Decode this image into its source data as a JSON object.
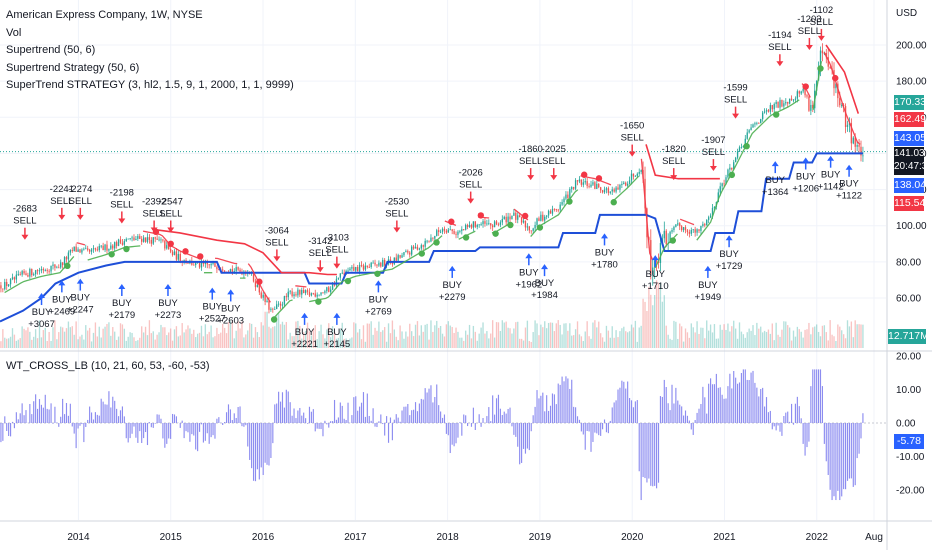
{
  "legend": {
    "title": "American Express Company, 1W, NYSE",
    "lines": [
      "Vol",
      "Supertrend (50, 6)",
      "Supertrend Strategy (50, 6)",
      "SuperTrend STRATEGY (3, hl2, 1.5, 9, 1, 2000, 1, 1, 9999)"
    ]
  },
  "oscillator_title": "WT_CROSS_LB (10, 21, 60, 53, -60, -53)",
  "colors": {
    "up": "#26a69a",
    "down": "#ef5350",
    "supertrend_blue": "#1e4fd8",
    "supertrend_red": "#f23645",
    "supertrend_green": "#4caf50",
    "wt_bar": "#8c8cf0",
    "badge_green": "#26a69a",
    "badge_red": "#f23645",
    "badge_blue": "#2962ff",
    "badge_dark": "#131722"
  },
  "price_badges": [
    {
      "label": "170.33",
      "color": "#26a69a"
    },
    {
      "label": "162.49",
      "color": "#f23645"
    },
    {
      "label": "143.05",
      "color": "#2962ff"
    },
    {
      "label": "141.03",
      "sub": "20:47:37",
      "color": "#131722"
    },
    {
      "label": "138.04",
      "color": "#2962ff"
    },
    {
      "label": "115.54",
      "color": "#f23645"
    }
  ],
  "volume_badge": {
    "label": "12.717M",
    "color": "#26a69a"
  },
  "oscillator_badge": {
    "label": "-5.78",
    "color": "#2962ff"
  },
  "chart_data": [
    {
      "type": "candlestick",
      "title": "American Express Company, 1W, NYSE",
      "y_unit": "USD",
      "x_ticks": [
        "2014",
        "2015",
        "2016",
        "2017",
        "2018",
        "2019",
        "2020",
        "2021",
        "2022",
        "Aug"
      ],
      "y_ticks": [
        "60.00",
        "80.00",
        "100.00",
        "120.00",
        "140.00",
        "160.00",
        "180.00",
        "200.00"
      ],
      "ylim": [
        45,
        220
      ],
      "xlim": [
        2013.15,
        2022.75
      ],
      "close_series": [
        [
          2013.2,
          67
        ],
        [
          2013.4,
          73
        ],
        [
          2013.6,
          76
        ],
        [
          2013.8,
          78
        ],
        [
          2013.95,
          87
        ],
        [
          2014.1,
          85
        ],
        [
          2014.3,
          88
        ],
        [
          2014.5,
          92
        ],
        [
          2014.7,
          93
        ],
        [
          2014.9,
          91
        ],
        [
          2015.0,
          85
        ],
        [
          2015.1,
          82
        ],
        [
          2015.3,
          78
        ],
        [
          2015.5,
          78
        ],
        [
          2015.7,
          75
        ],
        [
          2015.85,
          75
        ],
        [
          2016.0,
          60
        ],
        [
          2016.1,
          52
        ],
        [
          2016.3,
          63
        ],
        [
          2016.5,
          62
        ],
        [
          2016.7,
          64
        ],
        [
          2016.85,
          73
        ],
        [
          2017.0,
          76
        ],
        [
          2017.2,
          78
        ],
        [
          2017.4,
          80
        ],
        [
          2017.6,
          86
        ],
        [
          2017.8,
          92
        ],
        [
          2017.95,
          99
        ],
        [
          2018.1,
          96
        ],
        [
          2018.3,
          101
        ],
        [
          2018.5,
          100
        ],
        [
          2018.7,
          106
        ],
        [
          2018.9,
          98
        ],
        [
          2019.0,
          104
        ],
        [
          2019.2,
          110
        ],
        [
          2019.4,
          124
        ],
        [
          2019.6,
          122
        ],
        [
          2019.8,
          118
        ],
        [
          2019.95,
          125
        ],
        [
          2020.1,
          133
        ],
        [
          2020.2,
          75
        ],
        [
          2020.35,
          92
        ],
        [
          2020.5,
          100
        ],
        [
          2020.7,
          96
        ],
        [
          2020.85,
          106
        ],
        [
          2020.95,
          121
        ],
        [
          2021.1,
          135
        ],
        [
          2021.3,
          155
        ],
        [
          2021.5,
          165
        ],
        [
          2021.7,
          170
        ],
        [
          2021.85,
          175
        ],
        [
          2021.95,
          165
        ],
        [
          2022.05,
          195
        ],
        [
          2022.15,
          185
        ],
        [
          2022.3,
          160
        ],
        [
          2022.45,
          141
        ],
        [
          2022.5,
          141
        ]
      ],
      "supertrend_blue": [
        [
          2013.15,
          47
        ],
        [
          2013.4,
          53
        ],
        [
          2013.6,
          60
        ],
        [
          2013.75,
          68
        ],
        [
          2014.0,
          74
        ],
        [
          2014.3,
          78
        ],
        [
          2014.5,
          80
        ],
        [
          2015.1,
          80
        ],
        [
          2015.5,
          80
        ],
        [
          2015.55,
          74
        ],
        [
          2016.45,
          74
        ],
        [
          2016.5,
          68
        ],
        [
          2016.85,
          68
        ],
        [
          2016.9,
          74
        ],
        [
          2017.3,
          74
        ],
        [
          2017.35,
          80
        ],
        [
          2017.8,
          80
        ],
        [
          2017.85,
          86
        ],
        [
          2018.3,
          86
        ],
        [
          2018.35,
          88
        ],
        [
          2019.2,
          88
        ],
        [
          2019.25,
          96
        ],
        [
          2019.6,
          96
        ],
        [
          2019.65,
          106
        ],
        [
          2020.15,
          106
        ],
        [
          2020.25,
          104
        ],
        [
          2020.35,
          86
        ],
        [
          2020.85,
          86
        ],
        [
          2020.9,
          96
        ],
        [
          2021.1,
          96
        ],
        [
          2021.15,
          108
        ],
        [
          2021.4,
          108
        ],
        [
          2021.45,
          126
        ],
        [
          2021.7,
          126
        ],
        [
          2021.75,
          135
        ],
        [
          2021.95,
          135
        ],
        [
          2022.0,
          140
        ],
        [
          2022.5,
          140
        ]
      ],
      "supertrend_red": [
        [
          2014.8,
          98
        ],
        [
          2015.1,
          96
        ],
        [
          2015.3,
          94
        ],
        [
          2015.5,
          92
        ],
        [
          2015.8,
          90
        ],
        [
          2016.0,
          85
        ],
        [
          2016.2,
          74
        ],
        [
          2016.5,
          74
        ],
        [
          2016.7,
          73
        ],
        [
          2016.8,
          73
        ],
        [
          2020.15,
          145
        ],
        [
          2020.25,
          128
        ],
        [
          2020.5,
          126
        ],
        [
          2020.85,
          126
        ],
        [
          2020.95,
          126
        ],
        [
          2022.1,
          200
        ],
        [
          2022.3,
          185
        ],
        [
          2022.45,
          162
        ]
      ],
      "signals": [
        {
          "x": 2013.42,
          "text": "-2683\nSELL",
          "kind": "sell",
          "y": 100
        },
        {
          "x": 2013.82,
          "text": "-2241\nSELL",
          "kind": "sell",
          "y": 111
        },
        {
          "x": 2014.02,
          "text": "-2274\nSELL",
          "kind": "sell",
          "y": 111
        },
        {
          "x": 2014.47,
          "text": "-2198\nSELL",
          "kind": "sell",
          "y": 109
        },
        {
          "x": 2014.82,
          "text": "-2392\nSELL",
          "kind": "sell",
          "y": 104
        },
        {
          "x": 2015.0,
          "text": "-2547\nSELL",
          "kind": "sell",
          "y": 104
        },
        {
          "x": 2016.15,
          "text": "-3064\nSELL",
          "kind": "sell",
          "y": 88
        },
        {
          "x": 2016.62,
          "text": "-3142\nSELL",
          "kind": "sell",
          "y": 82
        },
        {
          "x": 2016.8,
          "text": "-3103\nSELL",
          "kind": "sell",
          "y": 84
        },
        {
          "x": 2017.45,
          "text": "-2530\nSELL",
          "kind": "sell",
          "y": 104
        },
        {
          "x": 2018.25,
          "text": "-2026\nSELL",
          "kind": "sell",
          "y": 120
        },
        {
          "x": 2018.9,
          "text": "-1860\nSELL",
          "kind": "sell",
          "y": 133
        },
        {
          "x": 2019.15,
          "text": "-2025\nSELL",
          "kind": "sell",
          "y": 133
        },
        {
          "x": 2020.0,
          "text": "-1650\nSELL",
          "kind": "sell",
          "y": 146
        },
        {
          "x": 2020.45,
          "text": "-1820\nSELL",
          "kind": "sell",
          "y": 133
        },
        {
          "x": 2020.88,
          "text": "-1907\nSELL",
          "kind": "sell",
          "y": 138
        },
        {
          "x": 2021.12,
          "text": "-1599\nSELL",
          "kind": "sell",
          "y": 167
        },
        {
          "x": 2021.6,
          "text": "-1194\nSELL",
          "kind": "sell",
          "y": 196
        },
        {
          "x": 2021.92,
          "text": "-1203\nSELL",
          "kind": "sell",
          "y": 205
        },
        {
          "x": 2022.05,
          "text": "-1102\nSELL",
          "kind": "sell",
          "y": 210
        },
        {
          "x": 2013.6,
          "text": "BUY\n+3067",
          "kind": "buy",
          "y": 55
        },
        {
          "x": 2013.82,
          "text": "BUY\n+2469",
          "kind": "buy",
          "y": 62
        },
        {
          "x": 2014.02,
          "text": "BUY\n+2247",
          "kind": "buy",
          "y": 63
        },
        {
          "x": 2014.47,
          "text": "BUY\n+2179",
          "kind": "buy",
          "y": 60
        },
        {
          "x": 2014.97,
          "text": "BUY\n+2273",
          "kind": "buy",
          "y": 60
        },
        {
          "x": 2015.45,
          "text": "BUY\n+2527",
          "kind": "buy",
          "y": 58
        },
        {
          "x": 2015.65,
          "text": "BUY\n+2603",
          "kind": "buy",
          "y": 57
        },
        {
          "x": 2016.45,
          "text": "BUY\n+2221",
          "kind": "buy",
          "y": 44
        },
        {
          "x": 2016.8,
          "text": "BUY\n+2145",
          "kind": "buy",
          "y": 44
        },
        {
          "x": 2017.25,
          "text": "BUY\n+2769",
          "kind": "buy",
          "y": 62
        },
        {
          "x": 2018.05,
          "text": "BUY\n+2279",
          "kind": "buy",
          "y": 70
        },
        {
          "x": 2018.88,
          "text": "BUY\n+1962",
          "kind": "buy",
          "y": 77
        },
        {
          "x": 2019.05,
          "text": "BUY\n+1984",
          "kind": "buy",
          "y": 71
        },
        {
          "x": 2019.7,
          "text": "BUY\n+1780",
          "kind": "buy",
          "y": 88
        },
        {
          "x": 2020.25,
          "text": "BUY\n+1710",
          "kind": "buy",
          "y": 76
        },
        {
          "x": 2020.82,
          "text": "BUY\n+1949",
          "kind": "buy",
          "y": 70
        },
        {
          "x": 2021.05,
          "text": "BUY\n+1729",
          "kind": "buy",
          "y": 87
        },
        {
          "x": 2021.55,
          "text": "BUY\n+1364",
          "kind": "buy",
          "y": 128
        },
        {
          "x": 2021.88,
          "text": "BUY\n+1206",
          "kind": "buy",
          "y": 130
        },
        {
          "x": 2022.15,
          "text": "BUY\n+1142",
          "kind": "buy",
          "y": 131
        },
        {
          "x": 2022.35,
          "text": "BUY\n+1122",
          "kind": "buy",
          "y": 126
        }
      ]
    },
    {
      "type": "bar",
      "title": "WT_CROSS_LB (10, 21, 60, 53, -60, -53)",
      "y_ticks": [
        "20.00",
        "10.00",
        "0.00",
        "-10.00",
        "-20.00"
      ],
      "ylim": [
        -26,
        21
      ],
      "last_value": -5.78
    }
  ]
}
